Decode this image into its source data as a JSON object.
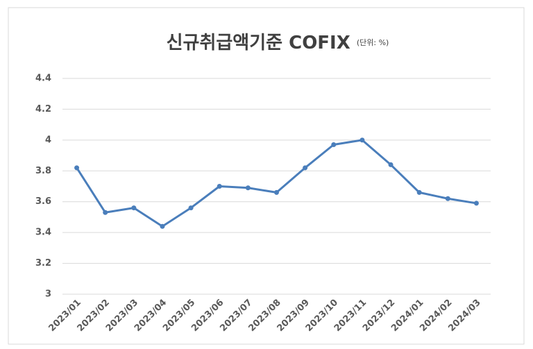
{
  "chart_data": {
    "type": "line",
    "title": "신규취급액기준 COFIX",
    "subtitle": "(단위: %)",
    "categories": [
      "2023/01",
      "2023/02",
      "2023/03",
      "2023/04",
      "2023/05",
      "2023/06",
      "2023/07",
      "2023/08",
      "2023/09",
      "2023/10",
      "2023/11",
      "2023/12",
      "2024/01",
      "2024/02",
      "2024/03"
    ],
    "values": [
      3.82,
      3.53,
      3.56,
      3.44,
      3.56,
      3.7,
      3.69,
      3.66,
      3.82,
      3.97,
      4.0,
      3.84,
      3.66,
      3.62,
      3.59
    ],
    "color": "#4a7ebb",
    "ylim": [
      3,
      4.4
    ],
    "yticks": [
      3,
      3.2,
      3.4,
      3.6,
      3.8,
      4,
      4.2,
      4.4
    ],
    "grid": true
  }
}
